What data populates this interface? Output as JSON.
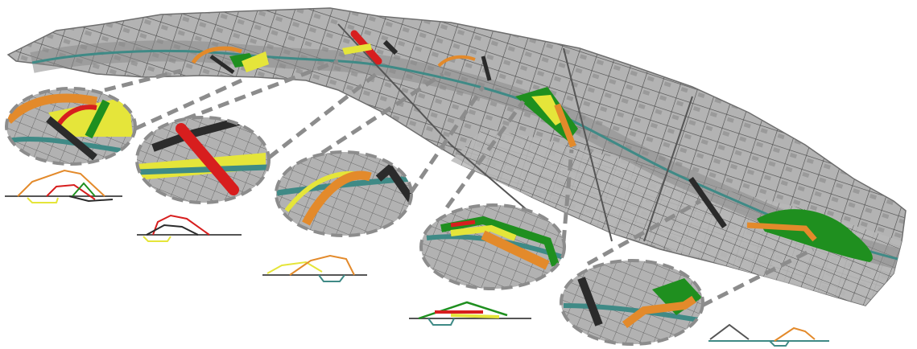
{
  "diagram": {
    "description_visible_text": "",
    "colors": {
      "map_fill": "#b3b3b3",
      "map_edge": "#6e6e6e",
      "street": "#3a3a3a",
      "water": "#3f8a86",
      "bridge_orange": "#e38a2b",
      "bridge_red": "#d71e1e",
      "bridge_black": "#2b2b2b",
      "park_green": "#1f8f1f",
      "park_yellow": "#e5e53a",
      "dash": "#8c8c8c",
      "profile_ground": "#555555"
    },
    "callouts": [
      {
        "id": 1,
        "elements": [
          "orange",
          "red",
          "green",
          "black",
          "yellow"
        ]
      },
      {
        "id": 2,
        "elements": [
          "red",
          "black",
          "yellow"
        ]
      },
      {
        "id": 3,
        "elements": [
          "orange",
          "yellow",
          "black"
        ]
      },
      {
        "id": 4,
        "elements": [
          "green",
          "orange",
          "red",
          "yellow"
        ]
      },
      {
        "id": 5,
        "elements": [
          "black",
          "orange",
          "green"
        ]
      }
    ]
  }
}
